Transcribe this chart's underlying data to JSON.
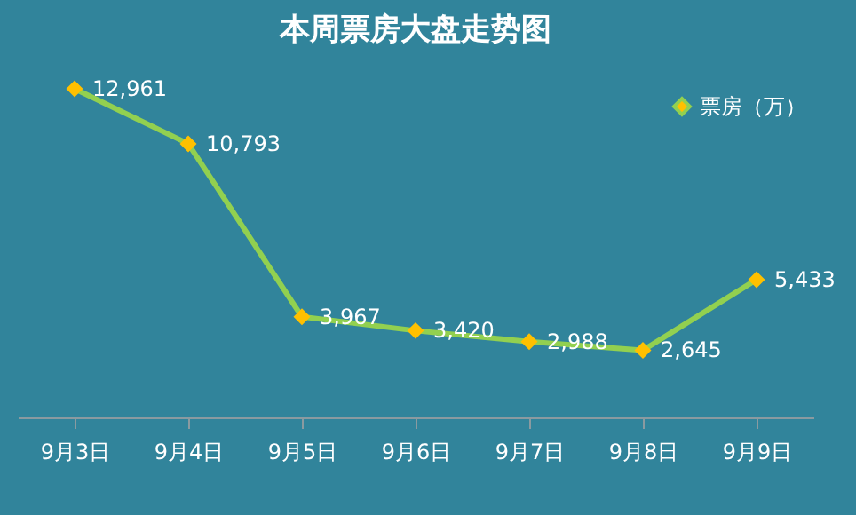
{
  "chart_data": {
    "type": "line",
    "title": "本周票房大盘走势图",
    "categories": [
      "9月3日",
      "9月4日",
      "9月5日",
      "9月6日",
      "9月7日",
      "9月8日",
      "9月9日"
    ],
    "series": [
      {
        "name": "票房（万）",
        "color": "#92d050",
        "colors": [
          "#ffc000",
          "#ffc000",
          "#ffc000",
          "#ffc000",
          "#ffc000",
          "#ffc000",
          "#ffc000"
        ],
        "values": [
          12961,
          10793,
          3967,
          3420,
          2988,
          2645,
          5433
        ],
        "value_labels": [
          "12,961",
          "10,793",
          "3,967",
          "3,420",
          "2,988",
          "2,645",
          "5,433"
        ]
      }
    ],
    "marker": "diamond",
    "line_style": "solid",
    "legend": "top right",
    "grid": false,
    "tick_labels": "x"
  }
}
